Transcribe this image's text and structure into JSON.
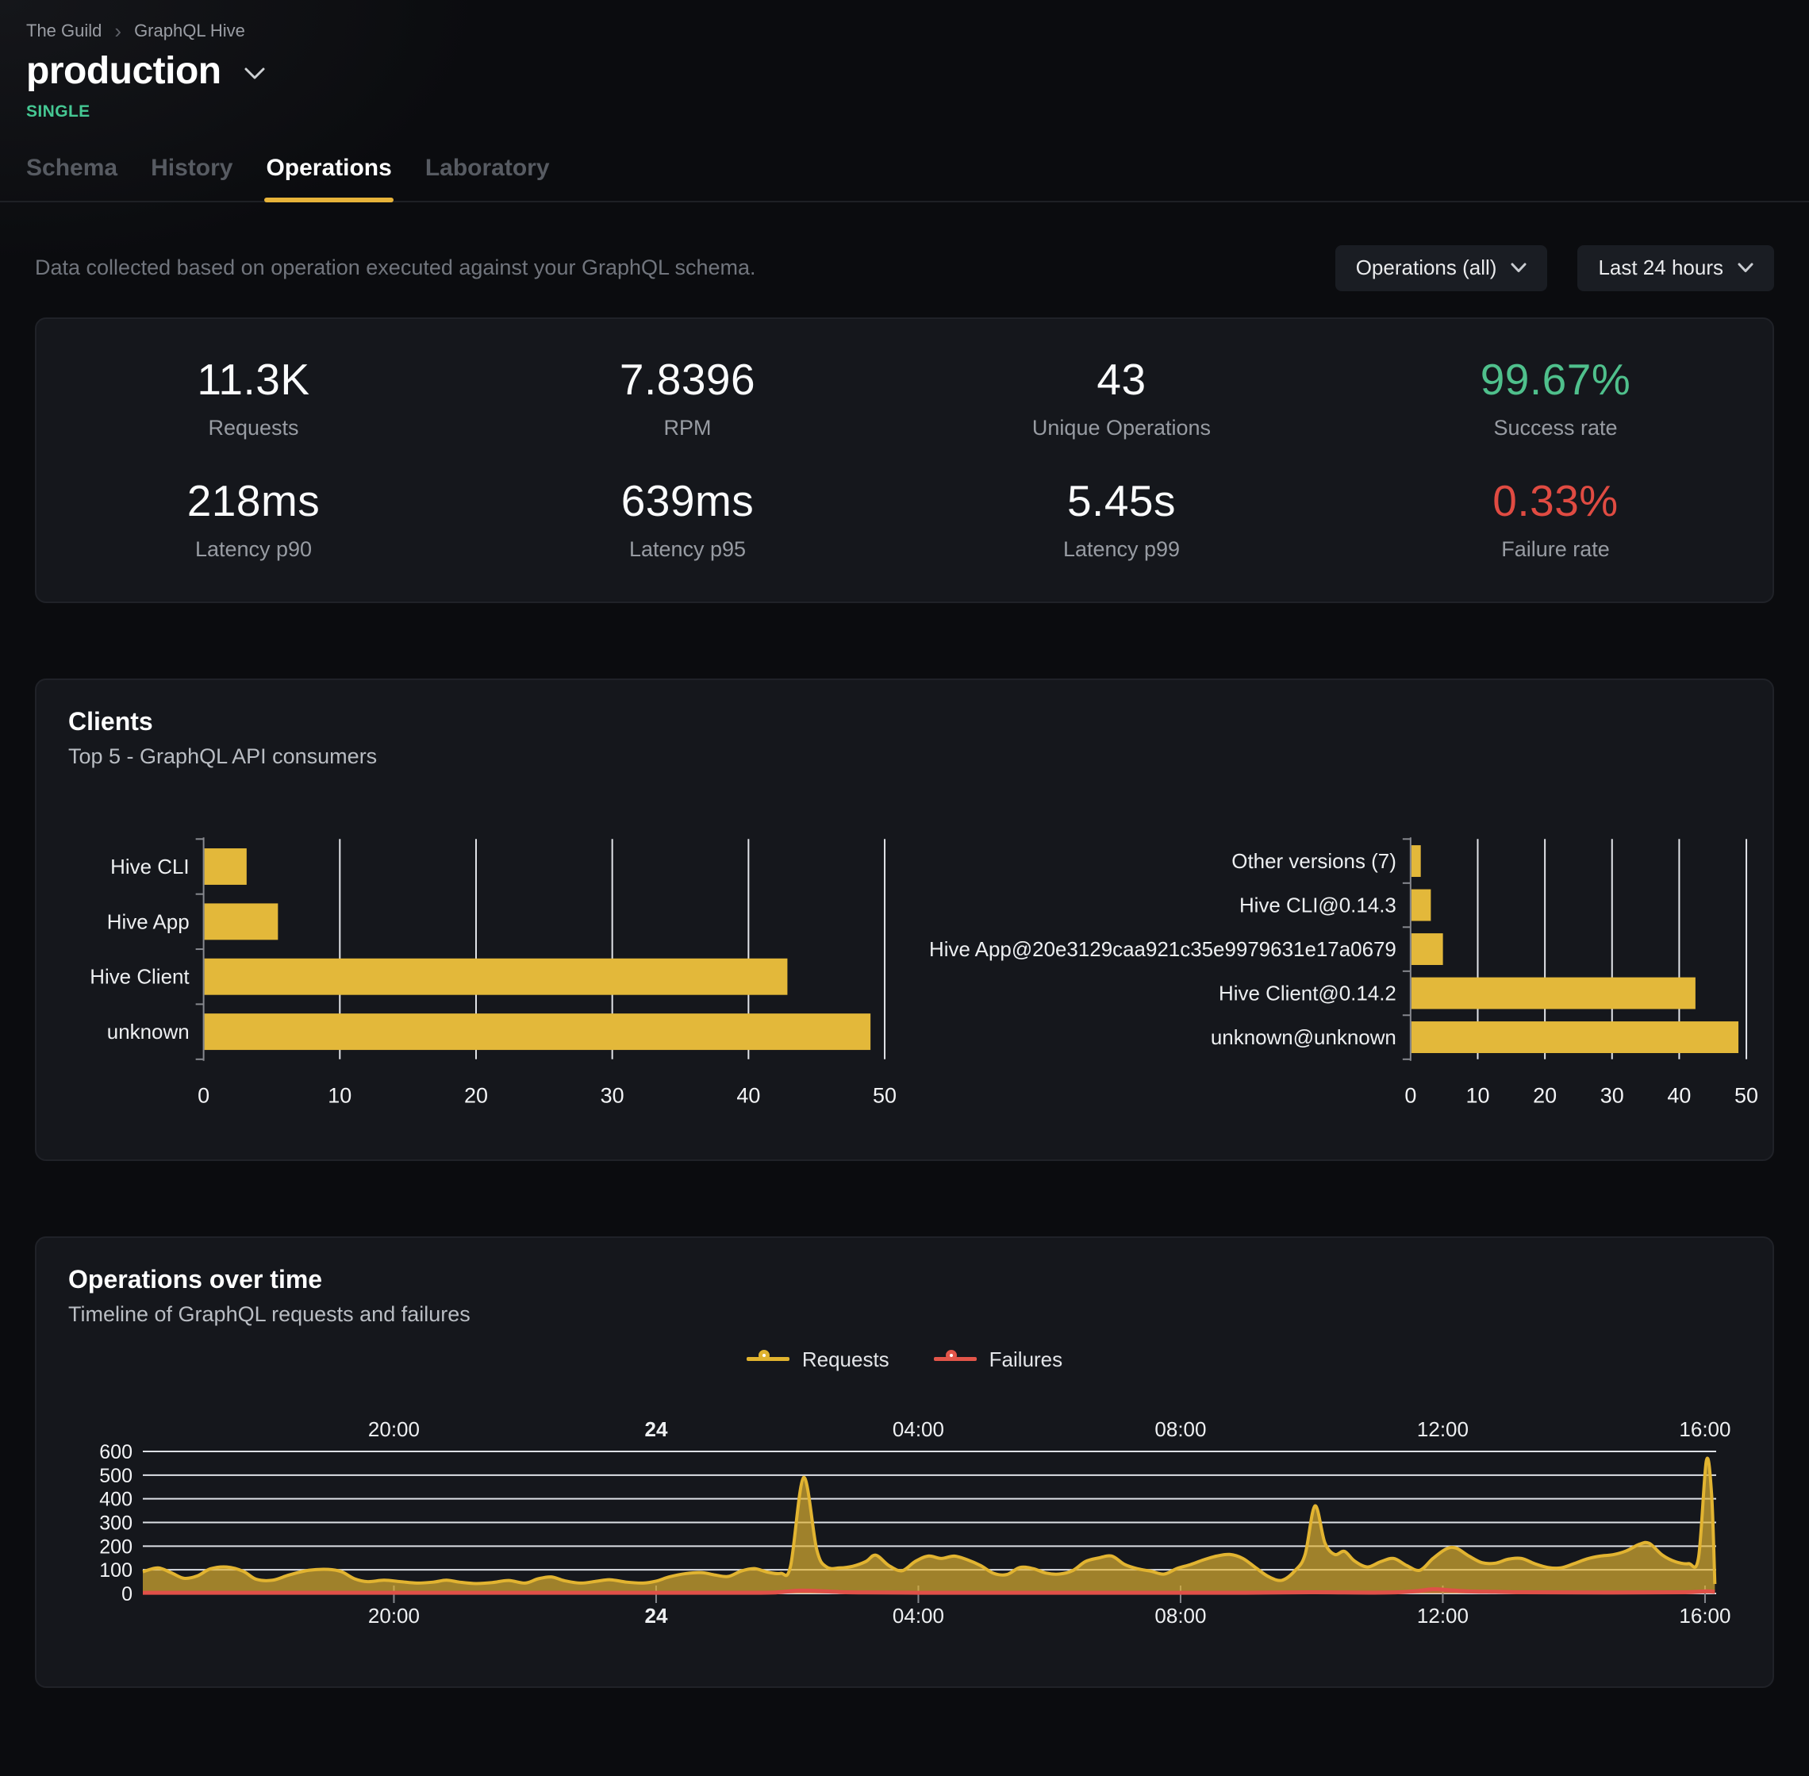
{
  "colors": {
    "accent": "#e7b33a",
    "bar_yellow": "#e3b83a",
    "success_green": "#4fc08c",
    "failure_red": "#e04b42",
    "requests_line": "#e2b431",
    "failures_line": "#e05048",
    "card_bg": "#15171c",
    "page_bg": "#0b0c0f"
  },
  "breadcrumb": {
    "items": [
      "The Guild",
      "GraphQL Hive"
    ],
    "separator": "›"
  },
  "header": {
    "title": "production",
    "badge": "SINGLE"
  },
  "tabs": [
    {
      "label": "Schema",
      "active": false
    },
    {
      "label": "History",
      "active": false
    },
    {
      "label": "Operations",
      "active": true
    },
    {
      "label": "Laboratory",
      "active": false
    }
  ],
  "toolbar": {
    "description": "Data collected based on operation executed against your GraphQL schema.",
    "filters": [
      {
        "label": "Operations (all)"
      },
      {
        "label": "Last 24 hours"
      }
    ]
  },
  "stats": [
    {
      "value": "11.3K",
      "label": "Requests",
      "color": "#fafbfc"
    },
    {
      "value": "7.8396",
      "label": "RPM",
      "color": "#fafbfc"
    },
    {
      "value": "43",
      "label": "Unique Operations",
      "color": "#fafbfc"
    },
    {
      "value": "99.67%",
      "label": "Success rate",
      "color": "#4fc08c"
    },
    {
      "value": "218ms",
      "label": "Latency p90",
      "color": "#fafbfc"
    },
    {
      "value": "639ms",
      "label": "Latency p95",
      "color": "#fafbfc"
    },
    {
      "value": "5.45s",
      "label": "Latency p99",
      "color": "#fafbfc"
    },
    {
      "value": "0.33%",
      "label": "Failure rate",
      "color": "#e04b42"
    }
  ],
  "clients_card": {
    "title": "Clients",
    "subtitle": "Top 5 - GraphQL API consumers"
  },
  "operations_card": {
    "title": "Operations over time",
    "subtitle": "Timeline of GraphQL requests and failures",
    "legend": [
      {
        "label": "Requests",
        "color": "#e0b32f"
      },
      {
        "label": "Failures",
        "color": "#e25549"
      }
    ]
  },
  "chart_data": [
    {
      "id": "clients-by-name",
      "type": "bar",
      "orientation": "horizontal",
      "categories": [
        "Hive CLI",
        "Hive App",
        "Hive Client",
        "unknown"
      ],
      "values": [
        3.1,
        5.4,
        42.8,
        48.9
      ],
      "xlim": [
        0,
        50
      ],
      "xticks": [
        0,
        10,
        20,
        30,
        40,
        50
      ],
      "bar_color": "#e3b83a",
      "grid": true
    },
    {
      "id": "clients-by-version",
      "type": "bar",
      "orientation": "horizontal",
      "categories": [
        "Other versions (7)",
        "Hive CLI@0.14.3",
        "Hive App@20e3129caa921c35e9979631e17a0679",
        "Hive Client@0.14.2",
        "unknown@unknown"
      ],
      "values": [
        1.4,
        2.9,
        4.7,
        42.3,
        48.7
      ],
      "xlim": [
        0,
        50
      ],
      "xticks": [
        0,
        10,
        20,
        30,
        40,
        50
      ],
      "bar_color": "#e3b83a",
      "grid": true
    },
    {
      "id": "operations-over-time",
      "type": "area",
      "x_start_hour": 16.17,
      "x_end_hour": 40.17,
      "xticks": [
        {
          "hour": 20,
          "label": "20:00",
          "bold": false
        },
        {
          "hour": 24,
          "label": "24",
          "bold": true
        },
        {
          "hour": 28,
          "label": "04:00",
          "bold": false
        },
        {
          "hour": 32,
          "label": "08:00",
          "bold": false
        },
        {
          "hour": 36,
          "label": "12:00",
          "bold": false
        },
        {
          "hour": 40,
          "label": "16:00",
          "bold": false
        }
      ],
      "ylim": [
        0,
        600
      ],
      "yticks": [
        0,
        100,
        200,
        300,
        400,
        500,
        600
      ],
      "grid": true,
      "legend_position": "top-center",
      "series": [
        {
          "name": "Requests",
          "color": "#e2b431",
          "fill": "rgba(226,180,50,0.68)",
          "points": [
            [
              16.17,
              92
            ],
            [
              16.4,
              108
            ],
            [
              16.6,
              88
            ],
            [
              16.8,
              64
            ],
            [
              17.0,
              74
            ],
            [
              17.2,
              104
            ],
            [
              17.45,
              112
            ],
            [
              17.7,
              94
            ],
            [
              17.9,
              60
            ],
            [
              18.15,
              56
            ],
            [
              18.4,
              78
            ],
            [
              18.7,
              98
            ],
            [
              19.0,
              102
            ],
            [
              19.2,
              92
            ],
            [
              19.4,
              62
            ],
            [
              19.6,
              50
            ],
            [
              19.85,
              56
            ],
            [
              20.1,
              50
            ],
            [
              20.35,
              44
            ],
            [
              20.6,
              48
            ],
            [
              20.8,
              56
            ],
            [
              21.0,
              48
            ],
            [
              21.25,
              42
            ],
            [
              21.5,
              46
            ],
            [
              21.75,
              55
            ],
            [
              22.0,
              44
            ],
            [
              22.2,
              62
            ],
            [
              22.4,
              70
            ],
            [
              22.6,
              54
            ],
            [
              22.85,
              44
            ],
            [
              23.1,
              52
            ],
            [
              23.3,
              58
            ],
            [
              23.55,
              48
            ],
            [
              23.8,
              44
            ],
            [
              24.0,
              52
            ],
            [
              24.2,
              70
            ],
            [
              24.45,
              84
            ],
            [
              24.7,
              88
            ],
            [
              24.9,
              78
            ],
            [
              25.1,
              72
            ],
            [
              25.3,
              95
            ],
            [
              25.5,
              105
            ],
            [
              25.7,
              90
            ],
            [
              25.9,
              85
            ],
            [
              26.05,
              115
            ],
            [
              26.25,
              490
            ],
            [
              26.45,
              185
            ],
            [
              26.6,
              112
            ],
            [
              26.8,
              108
            ],
            [
              27.0,
              115
            ],
            [
              27.2,
              135
            ],
            [
              27.35,
              162
            ],
            [
              27.55,
              118
            ],
            [
              27.75,
              96
            ],
            [
              27.95,
              135
            ],
            [
              28.15,
              158
            ],
            [
              28.35,
              148
            ],
            [
              28.55,
              158
            ],
            [
              28.75,
              142
            ],
            [
              28.95,
              118
            ],
            [
              29.15,
              85
            ],
            [
              29.35,
              80
            ],
            [
              29.55,
              110
            ],
            [
              29.75,
              105
            ],
            [
              29.95,
              86
            ],
            [
              30.15,
              82
            ],
            [
              30.35,
              96
            ],
            [
              30.55,
              135
            ],
            [
              30.75,
              150
            ],
            [
              30.95,
              158
            ],
            [
              31.15,
              122
            ],
            [
              31.35,
              104
            ],
            [
              31.55,
              94
            ],
            [
              31.75,
              82
            ],
            [
              31.95,
              106
            ],
            [
              32.15,
              122
            ],
            [
              32.35,
              142
            ],
            [
              32.55,
              158
            ],
            [
              32.75,
              165
            ],
            [
              32.95,
              148
            ],
            [
              33.15,
              108
            ],
            [
              33.35,
              70
            ],
            [
              33.55,
              56
            ],
            [
              33.75,
              98
            ],
            [
              33.9,
              165
            ],
            [
              34.05,
              370
            ],
            [
              34.2,
              215
            ],
            [
              34.35,
              165
            ],
            [
              34.5,
              178
            ],
            [
              34.65,
              138
            ],
            [
              34.85,
              112
            ],
            [
              35.05,
              134
            ],
            [
              35.25,
              148
            ],
            [
              35.45,
              118
            ],
            [
              35.65,
              98
            ],
            [
              35.85,
              148
            ],
            [
              36.05,
              188
            ],
            [
              36.2,
              192
            ],
            [
              36.4,
              158
            ],
            [
              36.6,
              130
            ],
            [
              36.8,
              128
            ],
            [
              37.0,
              145
            ],
            [
              37.2,
              148
            ],
            [
              37.4,
              126
            ],
            [
              37.6,
              110
            ],
            [
              37.8,
              108
            ],
            [
              38.0,
              126
            ],
            [
              38.2,
              146
            ],
            [
              38.4,
              158
            ],
            [
              38.6,
              164
            ],
            [
              38.8,
              180
            ],
            [
              39.0,
              208
            ],
            [
              39.15,
              212
            ],
            [
              39.35,
              162
            ],
            [
              39.55,
              134
            ],
            [
              39.75,
              126
            ],
            [
              39.9,
              150
            ],
            [
              40.02,
              560
            ],
            [
              40.1,
              420
            ],
            [
              40.15,
              40
            ]
          ]
        },
        {
          "name": "Failures",
          "color": "#e05048",
          "fill": "rgba(224,80,72,0.3)",
          "points": [
            [
              16.17,
              3
            ],
            [
              18,
              3
            ],
            [
              20,
              3
            ],
            [
              22,
              3
            ],
            [
              24,
              3
            ],
            [
              25.6,
              3
            ],
            [
              25.9,
              6
            ],
            [
              26.2,
              12
            ],
            [
              26.5,
              10
            ],
            [
              26.8,
              6
            ],
            [
              27.2,
              4
            ],
            [
              28,
              3
            ],
            [
              29,
              3
            ],
            [
              30,
              3
            ],
            [
              31,
              3
            ],
            [
              32,
              3
            ],
            [
              33,
              3
            ],
            [
              34,
              5
            ],
            [
              34.5,
              4
            ],
            [
              35.2,
              4
            ],
            [
              35.6,
              10
            ],
            [
              35.85,
              18
            ],
            [
              36.1,
              14
            ],
            [
              36.4,
              9
            ],
            [
              36.8,
              7
            ],
            [
              37.2,
              5
            ],
            [
              38,
              4
            ],
            [
              39,
              4
            ],
            [
              39.7,
              5
            ],
            [
              40.0,
              9
            ],
            [
              40.15,
              7
            ]
          ]
        }
      ]
    }
  ]
}
